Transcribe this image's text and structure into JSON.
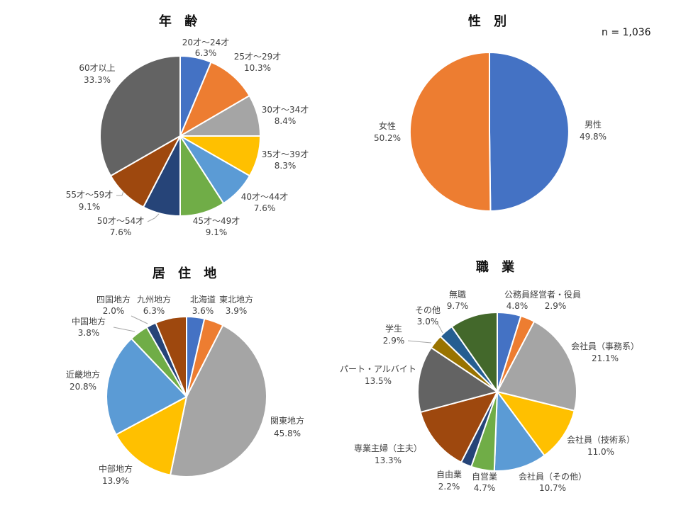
{
  "sample_size": "n = 1,036",
  "chart_data": [
    {
      "type": "pie",
      "title": "年 齢",
      "slices": [
        {
          "name": "20才～24才",
          "value": 6.3,
          "label": "6.3%",
          "color": "#4472C4"
        },
        {
          "name": "25才～29才",
          "value": 10.3,
          "label": "10.3%",
          "color": "#ED7D31"
        },
        {
          "name": "30才～34才",
          "value": 8.4,
          "label": "8.4%",
          "color": "#A5A5A5"
        },
        {
          "name": "35才～39才",
          "value": 8.3,
          "label": "8.3%",
          "color": "#FFC000"
        },
        {
          "name": "40才～44才",
          "value": 7.6,
          "label": "7.6%",
          "color": "#5B9BD5"
        },
        {
          "name": "45才～49才",
          "value": 9.1,
          "label": "9.1%",
          "color": "#70AD47"
        },
        {
          "name": "50才～54才",
          "value": 7.6,
          "label": "7.6%",
          "color": "#264478"
        },
        {
          "name": "55才～59才",
          "value": 9.1,
          "label": "9.1%",
          "color": "#9E480E"
        },
        {
          "name": "60才以上",
          "value": 33.3,
          "label": "33.3%",
          "color": "#636363"
        }
      ]
    },
    {
      "type": "pie",
      "title": "性 別",
      "slices": [
        {
          "name": "男性",
          "value": 49.8,
          "label": "49.8%",
          "color": "#4472C4"
        },
        {
          "name": "女性",
          "value": 50.2,
          "label": "50.2%",
          "color": "#ED7D31"
        }
      ]
    },
    {
      "type": "pie",
      "title": "居 住 地",
      "slices": [
        {
          "name": "北海道",
          "value": 3.6,
          "label": "3.6%",
          "color": "#4472C4"
        },
        {
          "name": "東北地方",
          "value": 3.9,
          "label": "3.9%",
          "color": "#ED7D31"
        },
        {
          "name": "関東地方",
          "value": 45.8,
          "label": "45.8%",
          "color": "#A5A5A5"
        },
        {
          "name": "中部地方",
          "value": 13.9,
          "label": "13.9%",
          "color": "#FFC000"
        },
        {
          "name": "近畿地方",
          "value": 20.8,
          "label": "20.8%",
          "color": "#5B9BD5"
        },
        {
          "name": "中国地方",
          "value": 3.8,
          "label": "3.8%",
          "color": "#70AD47"
        },
        {
          "name": "四国地方",
          "value": 2.0,
          "label": "2.0%",
          "color": "#264478"
        },
        {
          "name": "九州地方",
          "value": 6.3,
          "label": "6.3%",
          "color": "#9E480E"
        }
      ]
    },
    {
      "type": "pie",
      "title": "職 業",
      "slices": [
        {
          "name": "公務員",
          "value": 4.8,
          "label": "4.8%",
          "color": "#4472C4"
        },
        {
          "name": "経営者・役員",
          "value": 2.9,
          "label": "2.9%",
          "color": "#ED7D31"
        },
        {
          "name": "会社員（事務系）",
          "value": 21.1,
          "label": "21.1%",
          "color": "#A5A5A5"
        },
        {
          "name": "会社員（技術系）",
          "value": 11.0,
          "label": "11.0%",
          "color": "#FFC000"
        },
        {
          "name": "会社員（その他）",
          "value": 10.7,
          "label": "10.7%",
          "color": "#5B9BD5"
        },
        {
          "name": "自営業",
          "value": 4.7,
          "label": "4.7%",
          "color": "#70AD47"
        },
        {
          "name": "自由業",
          "value": 2.2,
          "label": "2.2%",
          "color": "#264478"
        },
        {
          "name": "専業主婦（主夫）",
          "value": 13.3,
          "label": "13.3%",
          "color": "#9E480E"
        },
        {
          "name": "パート・アルバイト",
          "value": 13.5,
          "label": "13.5%",
          "color": "#636363"
        },
        {
          "name": "学生",
          "value": 2.9,
          "label": "2.9%",
          "color": "#997300"
        },
        {
          "name": "その他",
          "value": 3.0,
          "label": "3.0%",
          "color": "#255E91"
        },
        {
          "name": "無職",
          "value": 9.7,
          "label": "9.7%",
          "color": "#43682B"
        }
      ]
    }
  ]
}
